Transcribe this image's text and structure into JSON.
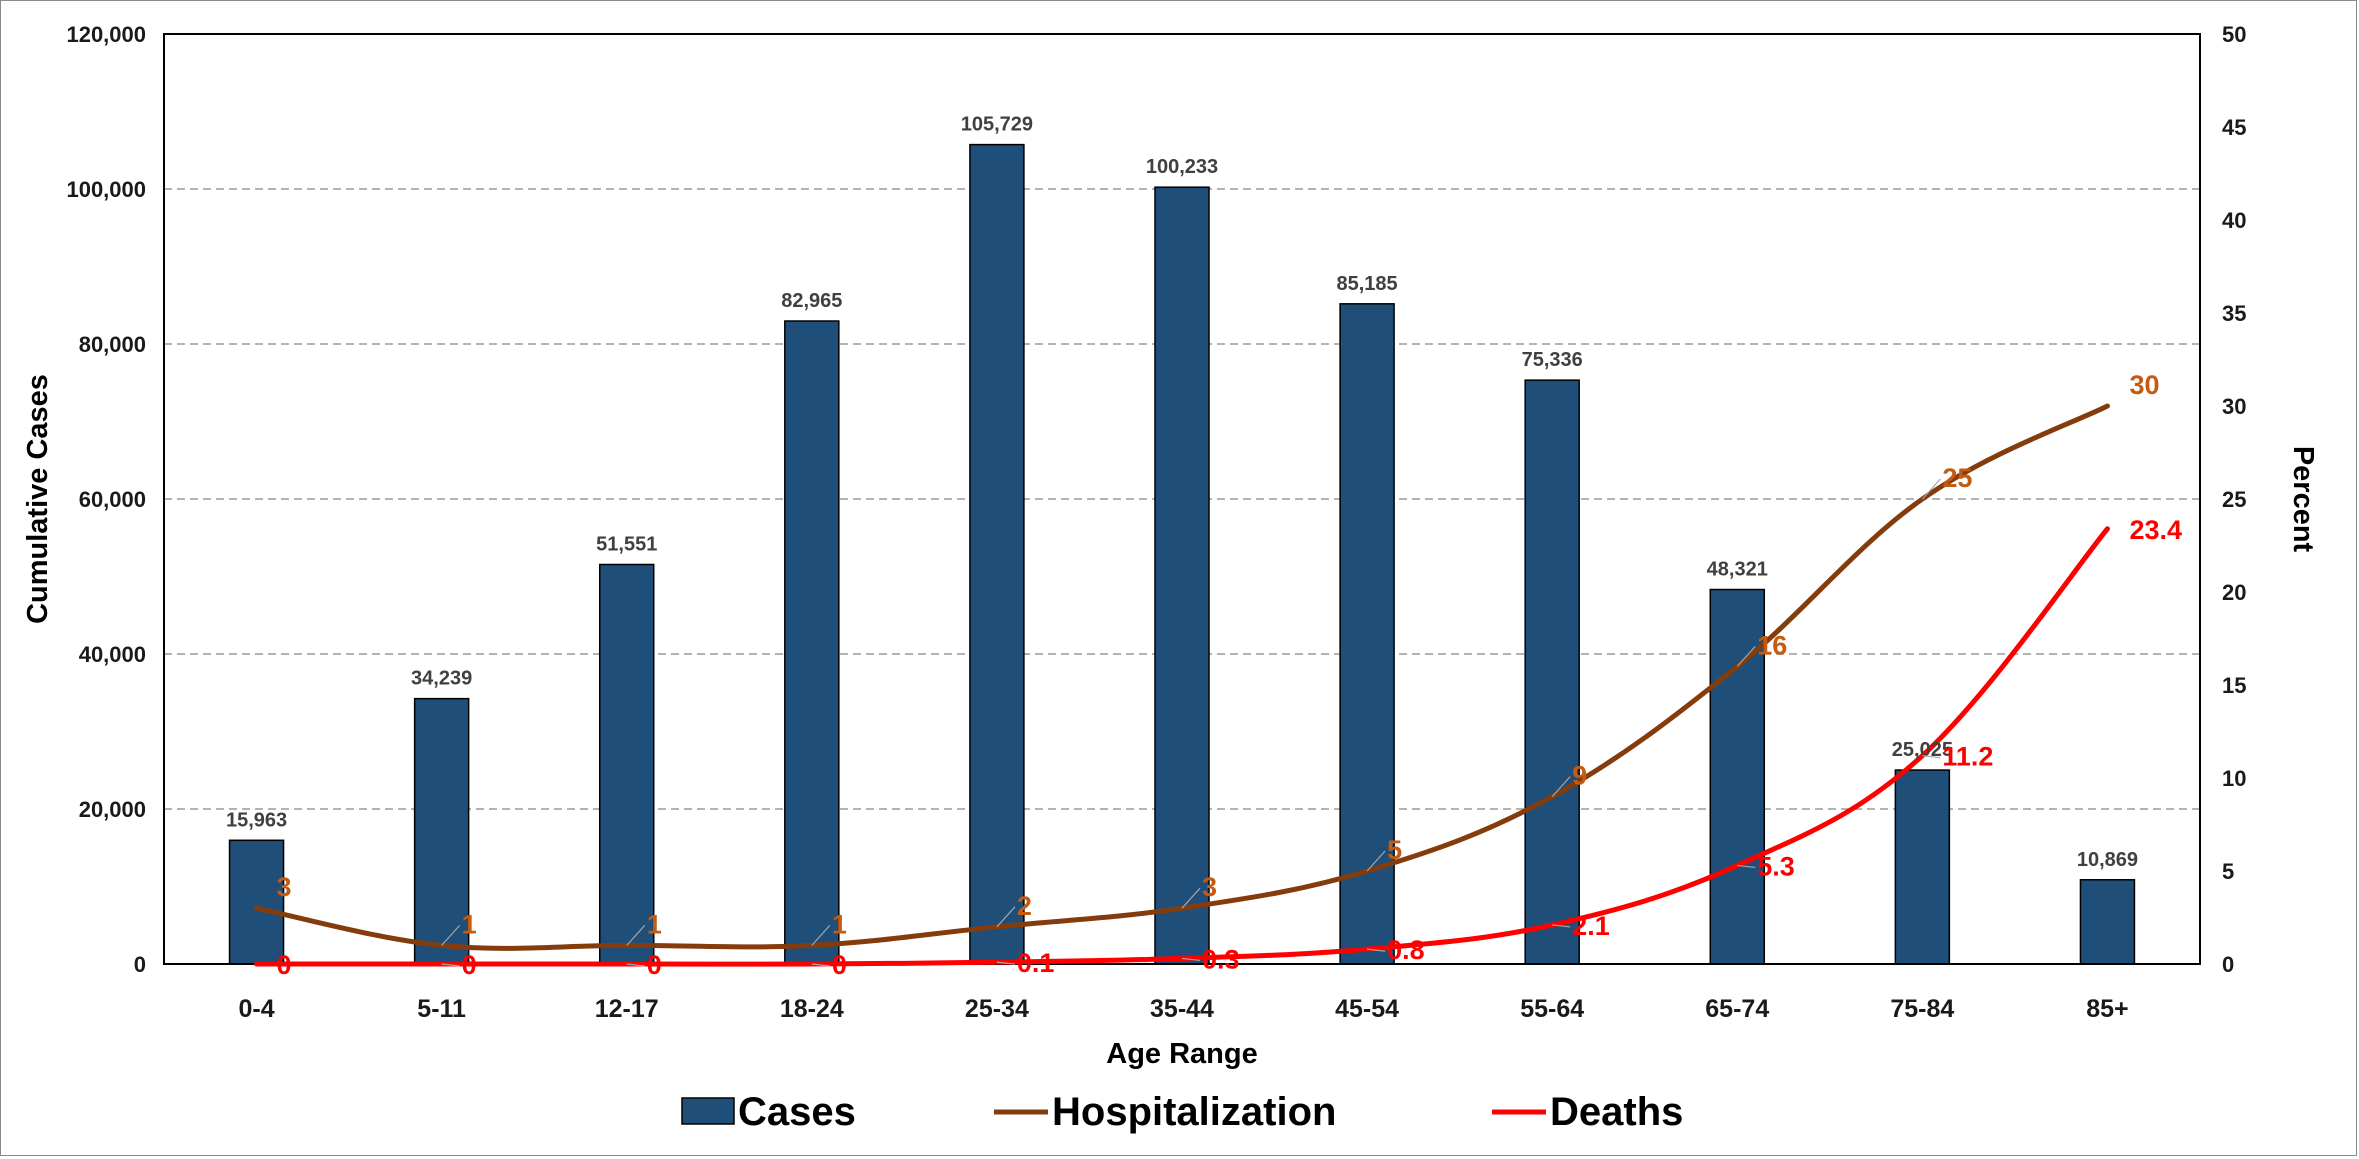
{
  "chart_data": {
    "type": "bar",
    "xlabel": "Age Range",
    "ylabel": "Cumulative Cases",
    "y2label": "Percent",
    "ylim": [
      0,
      120000
    ],
    "y2lim": [
      0,
      50
    ],
    "yticks": [
      "0",
      "20,000",
      "40,000",
      "60,000",
      "80,000",
      "100,000",
      "120,000"
    ],
    "y2ticks": [
      "0",
      "5",
      "10",
      "15",
      "20",
      "25",
      "30",
      "35",
      "40",
      "45",
      "50"
    ],
    "grid": "horizontal dashed",
    "legend": "bottom",
    "categories": [
      "0-4",
      "5-11",
      "12-17",
      "18-24",
      "25-34",
      "35-44",
      "45-54",
      "55-64",
      "65-74",
      "75-84",
      "85+"
    ],
    "series": [
      {
        "name": "Cases",
        "type": "bar",
        "axis": "left",
        "color": "#1f4e79",
        "values": [
          15963,
          34239,
          51551,
          82965,
          105729,
          100233,
          85185,
          75336,
          48321,
          25025,
          10869
        ],
        "labels": [
          "15,963",
          "34,239",
          "51,551",
          "82,965",
          "105,729",
          "100,233",
          "85,185",
          "75,336",
          "48,321",
          "25,025",
          "10,869"
        ]
      },
      {
        "name": "Hospitalization",
        "type": "line",
        "axis": "right",
        "color": "#843c0c",
        "label_color": "#c55a11",
        "values": [
          3,
          1,
          1,
          1,
          2,
          3,
          5,
          9,
          16,
          25,
          30
        ],
        "labels": [
          "3",
          "1",
          "1",
          "1",
          "2",
          "3",
          "5",
          "9",
          "16",
          "25",
          "30"
        ]
      },
      {
        "name": "Deaths",
        "type": "line",
        "axis": "right",
        "color": "#ff0000",
        "label_color": "#ff0000",
        "values": [
          0,
          0,
          0,
          0,
          0.1,
          0.3,
          0.8,
          2.1,
          5.3,
          11.2,
          23.4
        ],
        "labels": [
          "0",
          "0",
          "0",
          "0",
          "0.1",
          "0.3",
          "0.8",
          "2.1",
          "5.3",
          "11.2",
          "23.4"
        ]
      }
    ]
  }
}
